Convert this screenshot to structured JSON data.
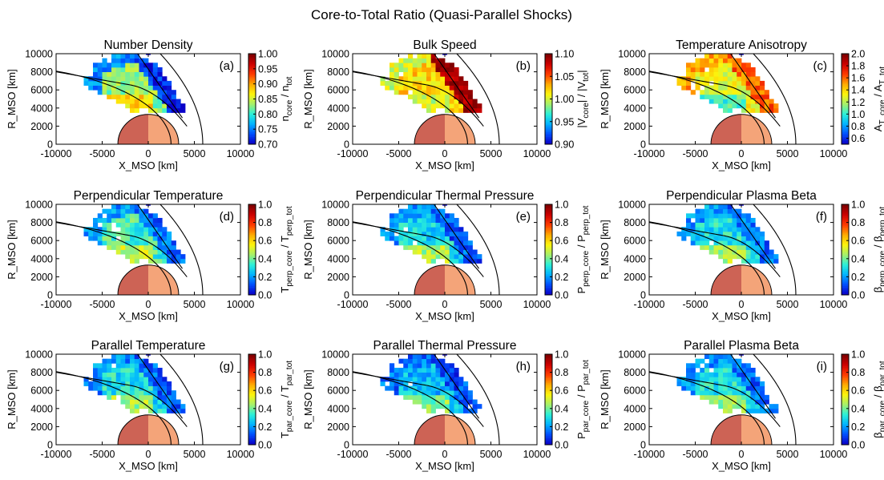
{
  "figure": {
    "title": "Core-to-Total Ratio (Quasi-Parallel Shocks)"
  },
  "colors": {
    "planet_dayside": "#f4a479",
    "planet_nightside": "#cd6355",
    "curves": "#000000",
    "colormap": [
      "#0a00c8",
      "#0050ff",
      "#00b4ff",
      "#2cf0d8",
      "#a6f06a",
      "#fcf50c",
      "#ffaa00",
      "#ff3c00",
      "#d00000",
      "#800000"
    ]
  },
  "chart_data": [
    {
      "id": "a",
      "panel_label": "(a)",
      "type": "heatmap",
      "title": "Number Density",
      "xlabel": "X_MSO [km]",
      "ylabel": "R_MSO [km]",
      "colorbar_label": {
        "main": "n",
        "sub": "core",
        "mid": " / n",
        "sub2": "tot"
      },
      "xlim": [
        -10000,
        10000
      ],
      "ylim": [
        0,
        10000
      ],
      "clim": [
        0.7,
        1.0
      ],
      "xticks": [
        "-10000",
        "-5000",
        "0",
        "5000",
        "10000"
      ],
      "yticks": [
        "0",
        "2000",
        "4000",
        "6000",
        "8000",
        "10000"
      ],
      "cticks": [
        "0.70",
        "0.75",
        "0.80",
        "0.85",
        "0.90",
        "0.95",
        "1.00"
      ],
      "cell_values": {
        "outer_edge": 0.75,
        "bow_shock": 0.72,
        "interior": 0.83,
        "magnetosheath_inner": 0.88
      }
    },
    {
      "id": "b",
      "panel_label": "(b)",
      "type": "heatmap",
      "title": "Bulk Speed",
      "xlabel": "X_MSO [km]",
      "ylabel": "R_MSO [km]",
      "colorbar_label": {
        "main": "|V",
        "sub": "core",
        "mid": "| / |V",
        "sub2": "tot",
        "end": "|"
      },
      "xlim": [
        -10000,
        10000
      ],
      "ylim": [
        0,
        10000
      ],
      "clim": [
        0.9,
        1.1
      ],
      "xticks": [
        "-10000",
        "-5000",
        "0",
        "5000",
        "10000"
      ],
      "yticks": [
        "0",
        "2000",
        "4000",
        "6000",
        "8000",
        "10000"
      ],
      "cticks": [
        "0.90",
        "0.95",
        "1.00",
        "1.05",
        "1.10"
      ],
      "cell_values": {
        "outer_edge": 1.0,
        "bow_shock": 1.09,
        "interior": 1.02,
        "magnetosheath_inner": 1.0
      }
    },
    {
      "id": "c",
      "panel_label": "(c)",
      "type": "heatmap",
      "title": "Temperature Anisotropy",
      "xlabel": "X_MSO [km]",
      "ylabel": "R_MSO [km]",
      "colorbar_label": {
        "main": "A",
        "sub": "T_core",
        "mid": " / A",
        "sub2": "T_tot"
      },
      "xlim": [
        -10000,
        10000
      ],
      "ylim": [
        0,
        10000
      ],
      "clim": [
        0.5,
        2.0
      ],
      "xticks": [
        "-10000",
        "-5000",
        "0",
        "5000",
        "10000"
      ],
      "yticks": [
        "0",
        "2000",
        "4000",
        "6000",
        "8000",
        "10000"
      ],
      "cticks": [
        "0.6",
        "0.8",
        "1.0",
        "1.2",
        "1.4",
        "1.6",
        "1.8",
        "2.0"
      ],
      "cell_values": {
        "outer_edge": 1.5,
        "bow_shock": 1.6,
        "interior": 1.3,
        "magnetosheath_inner": 1.05
      }
    },
    {
      "id": "d",
      "panel_label": "(d)",
      "type": "heatmap",
      "title": "Perpendicular Temperature",
      "xlabel": "X_MSO [km]",
      "ylabel": "R_MSO [km]",
      "colorbar_label": {
        "main": "T",
        "sub": "perp_core",
        "mid": " / T",
        "sub2": "perp_tot"
      },
      "xlim": [
        -10000,
        10000
      ],
      "ylim": [
        0,
        10000
      ],
      "clim": [
        0.0,
        1.0
      ],
      "xticks": [
        "-10000",
        "-5000",
        "0",
        "5000",
        "10000"
      ],
      "yticks": [
        "0",
        "2000",
        "4000",
        "6000",
        "8000",
        "10000"
      ],
      "cticks": [
        "0.0",
        "0.2",
        "0.4",
        "0.6",
        "0.8",
        "1.0"
      ],
      "cell_values": {
        "outer_edge": 0.2,
        "bow_shock": 0.15,
        "interior": 0.35,
        "magnetosheath_inner": 0.5
      }
    },
    {
      "id": "e",
      "panel_label": "(e)",
      "type": "heatmap",
      "title": "Perpendicular Thermal Pressure",
      "xlabel": "X_MSO [km]",
      "ylabel": "R_MSO [km]",
      "colorbar_label": {
        "main": "P",
        "sub": "perp_core",
        "mid": " / P",
        "sub2": "perp_tot"
      },
      "xlim": [
        -10000,
        10000
      ],
      "ylim": [
        0,
        10000
      ],
      "clim": [
        0.0,
        1.0
      ],
      "xticks": [
        "-10000",
        "-5000",
        "0",
        "5000",
        "10000"
      ],
      "yticks": [
        "0",
        "2000",
        "4000",
        "6000",
        "8000",
        "10000"
      ],
      "cticks": [
        "0.0",
        "0.2",
        "0.4",
        "0.6",
        "0.8",
        "1.0"
      ],
      "cell_values": {
        "outer_edge": 0.18,
        "bow_shock": 0.12,
        "interior": 0.28,
        "magnetosheath_inner": 0.45
      }
    },
    {
      "id": "f",
      "panel_label": "(f)",
      "type": "heatmap",
      "title": "Perpendicular Plasma Beta",
      "xlabel": "X_MSO [km]",
      "ylabel": "R_MSO [km]",
      "colorbar_label": {
        "main": "β",
        "sub": "perp_core",
        "mid": " / β",
        "sub2": "perp_tot"
      },
      "xlim": [
        -10000,
        10000
      ],
      "ylim": [
        0,
        10000
      ],
      "clim": [
        0.0,
        1.0
      ],
      "xticks": [
        "-10000",
        "-5000",
        "0",
        "5000",
        "10000"
      ],
      "yticks": [
        "0",
        "2000",
        "4000",
        "6000",
        "8000",
        "10000"
      ],
      "cticks": [
        "0.0",
        "0.2",
        "0.4",
        "0.6",
        "0.8",
        "1.0"
      ],
      "cell_values": {
        "outer_edge": 0.2,
        "bow_shock": 0.15,
        "interior": 0.3,
        "magnetosheath_inner": 0.45
      }
    },
    {
      "id": "g",
      "panel_label": "(g)",
      "type": "heatmap",
      "title": "Parallel Temperature",
      "xlabel": "X_MSO [km]",
      "ylabel": "R_MSO [km]",
      "colorbar_label": {
        "main": "T",
        "sub": "par_core",
        "mid": " / T",
        "sub2": "par_tot"
      },
      "xlim": [
        -10000,
        10000
      ],
      "ylim": [
        0,
        10000
      ],
      "clim": [
        0.0,
        1.0
      ],
      "xticks": [
        "-10000",
        "-5000",
        "0",
        "5000",
        "10000"
      ],
      "yticks": [
        "0",
        "2000",
        "4000",
        "6000",
        "8000",
        "10000"
      ],
      "cticks": [
        "0.0",
        "0.2",
        "0.4",
        "0.6",
        "0.8",
        "1.0"
      ],
      "cell_values": {
        "outer_edge": 0.18,
        "bow_shock": 0.12,
        "interior": 0.3,
        "magnetosheath_inner": 0.45
      }
    },
    {
      "id": "h",
      "panel_label": "(h)",
      "type": "heatmap",
      "title": "Parallel Thermal Pressure",
      "xlabel": "X_MSO [km]",
      "ylabel": "R_MSO [km]",
      "colorbar_label": {
        "main": "P",
        "sub": "par_core",
        "mid": " / P",
        "sub2": "par_tot"
      },
      "xlim": [
        -10000,
        10000
      ],
      "ylim": [
        0,
        10000
      ],
      "clim": [
        0.0,
        1.0
      ],
      "xticks": [
        "-10000",
        "-5000",
        "0",
        "5000",
        "10000"
      ],
      "yticks": [
        "0",
        "2000",
        "4000",
        "6000",
        "8000",
        "10000"
      ],
      "cticks": [
        "0.0",
        "0.2",
        "0.4",
        "0.6",
        "0.8",
        "1.0"
      ],
      "cell_values": {
        "outer_edge": 0.15,
        "bow_shock": 0.1,
        "interior": 0.24,
        "magnetosheath_inner": 0.42
      }
    },
    {
      "id": "i",
      "panel_label": "(i)",
      "type": "heatmap",
      "title": "Parallel Plasma Beta",
      "xlabel": "X_MSO [km]",
      "ylabel": "R_MSO [km]",
      "colorbar_label": {
        "main": "β",
        "sub": "par_core",
        "mid": " / β",
        "sub2": "par_tot"
      },
      "xlim": [
        -10000,
        10000
      ],
      "ylim": [
        0,
        10000
      ],
      "clim": [
        0.0,
        1.0
      ],
      "xticks": [
        "-10000",
        "-5000",
        "0",
        "5000",
        "10000"
      ],
      "yticks": [
        "0",
        "2000",
        "4000",
        "6000",
        "8000",
        "10000"
      ],
      "cticks": [
        "0.0",
        "0.2",
        "0.4",
        "0.6",
        "0.8",
        "1.0"
      ],
      "cell_values": {
        "outer_edge": 0.2,
        "bow_shock": 0.14,
        "interior": 0.3,
        "magnetosheath_inner": 0.45
      }
    }
  ]
}
